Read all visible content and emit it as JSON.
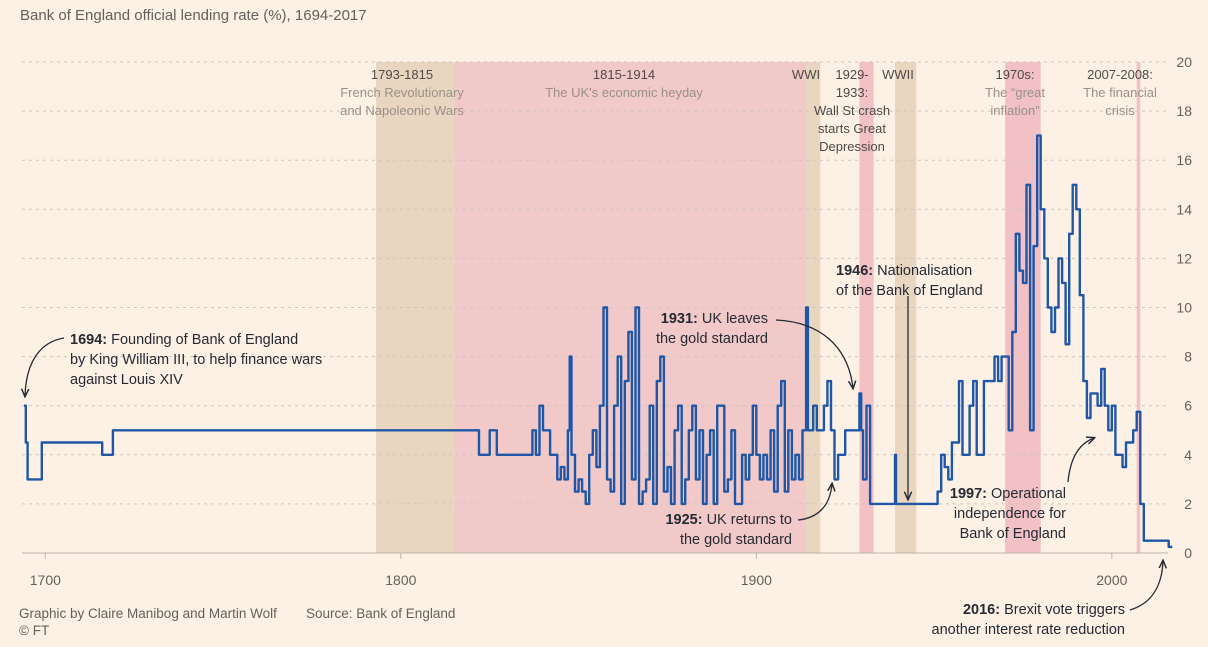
{
  "chart_data": {
    "type": "line",
    "title": "Bank of England official lending rate (%), 1694-2017",
    "xlim": [
      1694,
      2018
    ],
    "ylim": [
      0,
      20
    ],
    "x_ticks": [
      1700,
      1800,
      1900,
      2000
    ],
    "y_ticks": [
      0,
      2,
      4,
      6,
      8,
      10,
      12,
      14,
      16,
      18,
      20
    ],
    "grid": true,
    "line_color": "#1f57a6",
    "periods": [
      {
        "start": 1793,
        "end": 1815,
        "color": "#e9d6c0",
        "label_lines": [
          "1793-1815",
          "French Revolutionary",
          "and Napoleonic Wars"
        ]
      },
      {
        "start": 1815,
        "end": 1914,
        "color": "#f1c9c9",
        "label_lines": [
          "1815-1914",
          "The UK's economic heyday"
        ]
      },
      {
        "start": 1914,
        "end": 1918,
        "color": "#e9d6c0",
        "label_lines": [
          "WWI"
        ]
      },
      {
        "start": 1929,
        "end": 1933,
        "color": "#f1c1c6",
        "label_lines": [
          "1929-",
          "1933:",
          "Wall St crash",
          "starts Great",
          "Depression"
        ]
      },
      {
        "start": 1939,
        "end": 1945,
        "color": "#e9d6c0",
        "label_lines": [
          "WWII"
        ]
      },
      {
        "start": 1970,
        "end": 1980,
        "color": "#f1c1c6",
        "label_lines": [
          "1970s:",
          "The “great",
          "inflation”"
        ]
      },
      {
        "start": 2007,
        "end": 2008,
        "color": "#f1c1c6",
        "label_lines": [
          "2007-2008:",
          "The financial",
          "crisis"
        ]
      }
    ],
    "annotations": [
      {
        "year": "1694:",
        "lines": [
          "Founding of Bank of England",
          "by King William III, to help finance wars",
          "against Louis XIV"
        ]
      },
      {
        "year": "1931:",
        "lines": [
          "UK leaves",
          "the gold standard"
        ]
      },
      {
        "year": "1946:",
        "lines": [
          "Nationalisation",
          "of the Bank of England"
        ]
      },
      {
        "year": "1925:",
        "lines": [
          "UK returns to",
          "the gold standard"
        ]
      },
      {
        "year": "1997:",
        "lines": [
          "Operational",
          "independence for",
          "Bank of England"
        ]
      },
      {
        "year": "2016:",
        "lines": [
          "Brexit vote triggers",
          "another interest rate reduction"
        ]
      }
    ],
    "series": [
      {
        "points": [
          [
            1694,
            6
          ],
          [
            1694.5,
            4.5
          ],
          [
            1695,
            3
          ],
          [
            1699,
            4.5
          ],
          [
            1716,
            4
          ],
          [
            1719,
            5
          ],
          [
            1822,
            5
          ],
          [
            1822,
            4
          ],
          [
            1825,
            5
          ],
          [
            1827,
            4
          ],
          [
            1836,
            4
          ],
          [
            1837,
            5
          ],
          [
            1838,
            4
          ],
          [
            1839,
            6
          ],
          [
            1840,
            5
          ],
          [
            1842,
            4
          ],
          [
            1844,
            3
          ],
          [
            1845,
            3.5
          ],
          [
            1846,
            3
          ],
          [
            1847,
            5
          ],
          [
            1847.5,
            8
          ],
          [
            1848,
            4
          ],
          [
            1849,
            2.5
          ],
          [
            1850,
            3
          ],
          [
            1851,
            2.5
          ],
          [
            1852,
            2
          ],
          [
            1853,
            4
          ],
          [
            1854,
            5
          ],
          [
            1855,
            3.5
          ],
          [
            1856,
            6
          ],
          [
            1857,
            10
          ],
          [
            1858,
            3
          ],
          [
            1859,
            2.5
          ],
          [
            1860,
            6
          ],
          [
            1861,
            8
          ],
          [
            1862,
            2
          ],
          [
            1863,
            7
          ],
          [
            1864,
            9
          ],
          [
            1865,
            3
          ],
          [
            1866,
            10
          ],
          [
            1867,
            2
          ],
          [
            1868,
            2.5
          ],
          [
            1869,
            3
          ],
          [
            1870,
            6
          ],
          [
            1871,
            2
          ],
          [
            1872,
            7
          ],
          [
            1873,
            8
          ],
          [
            1874,
            2.5
          ],
          [
            1875,
            3.5
          ],
          [
            1876,
            2
          ],
          [
            1877,
            5
          ],
          [
            1878,
            6
          ],
          [
            1879,
            2
          ],
          [
            1880,
            3
          ],
          [
            1881,
            5
          ],
          [
            1882,
            6
          ],
          [
            1883,
            3
          ],
          [
            1884,
            5
          ],
          [
            1885,
            2
          ],
          [
            1886,
            4
          ],
          [
            1887,
            5
          ],
          [
            1888,
            2
          ],
          [
            1889,
            6
          ],
          [
            1890,
            6
          ],
          [
            1891,
            2.5
          ],
          [
            1892,
            3
          ],
          [
            1893,
            5
          ],
          [
            1894,
            2
          ],
          [
            1895,
            2
          ],
          [
            1896,
            4
          ],
          [
            1897,
            3
          ],
          [
            1898,
            4
          ],
          [
            1899,
            6
          ],
          [
            1900,
            4
          ],
          [
            1901,
            3
          ],
          [
            1902,
            4
          ],
          [
            1903,
            3
          ],
          [
            1904,
            5
          ],
          [
            1905,
            2.5
          ],
          [
            1906,
            6
          ],
          [
            1907,
            7
          ],
          [
            1908,
            2.5
          ],
          [
            1909,
            5
          ],
          [
            1910,
            3
          ],
          [
            1911,
            4
          ],
          [
            1912,
            3
          ],
          [
            1913,
            5
          ],
          [
            1914,
            10
          ],
          [
            1914.5,
            5
          ],
          [
            1916,
            6
          ],
          [
            1917,
            5
          ],
          [
            1919,
            6
          ],
          [
            1920,
            7
          ],
          [
            1921,
            5
          ],
          [
            1922,
            3
          ],
          [
            1923,
            4
          ],
          [
            1925,
            5
          ],
          [
            1926,
            5
          ],
          [
            1929,
            6.5
          ],
          [
            1929.5,
            5
          ],
          [
            1930,
            3
          ],
          [
            1931,
            6
          ],
          [
            1932,
            2
          ],
          [
            1939,
            4
          ],
          [
            1939.3,
            2
          ],
          [
            1951,
            2.5
          ],
          [
            1952,
            4
          ],
          [
            1953,
            3.5
          ],
          [
            1954,
            3
          ],
          [
            1955,
            4.5
          ],
          [
            1957,
            7
          ],
          [
            1958,
            4
          ],
          [
            1960,
            6
          ],
          [
            1961,
            7
          ],
          [
            1962,
            4
          ],
          [
            1964,
            7
          ],
          [
            1966,
            7
          ],
          [
            1967,
            8
          ],
          [
            1968,
            7
          ],
          [
            1969,
            8
          ],
          [
            1971,
            5
          ],
          [
            1972,
            9
          ],
          [
            1973,
            13
          ],
          [
            1974,
            11.5
          ],
          [
            1975,
            11
          ],
          [
            1976,
            15
          ],
          [
            1977,
            5
          ],
          [
            1978,
            12.5
          ],
          [
            1979,
            17
          ],
          [
            1980,
            14
          ],
          [
            1981,
            12
          ],
          [
            1982,
            10
          ],
          [
            1983,
            9
          ],
          [
            1984,
            10
          ],
          [
            1985,
            12
          ],
          [
            1986,
            11
          ],
          [
            1987,
            8.5
          ],
          [
            1988,
            13
          ],
          [
            1989,
            15
          ],
          [
            1990,
            14
          ],
          [
            1991,
            10.5
          ],
          [
            1992,
            7
          ],
          [
            1993,
            5.5
          ],
          [
            1994,
            6.5
          ],
          [
            1995,
            6.5
          ],
          [
            1996,
            6
          ],
          [
            1997,
            7.5
          ],
          [
            1998,
            6
          ],
          [
            1999,
            5
          ],
          [
            2000,
            6
          ],
          [
            2001,
            4
          ],
          [
            2003,
            3.5
          ],
          [
            2004,
            4.5
          ],
          [
            2005,
            4.5
          ],
          [
            2006,
            5
          ],
          [
            2007,
            5.75
          ],
          [
            2008,
            2
          ],
          [
            2009,
            0.5
          ],
          [
            2016,
            0.25
          ],
          [
            2017,
            0.25
          ]
        ]
      }
    ]
  },
  "footer": {
    "credit": "Graphic by Claire Manibog and Martin Wolf",
    "source": "Source: Bank of England",
    "copyright": "© FT"
  }
}
